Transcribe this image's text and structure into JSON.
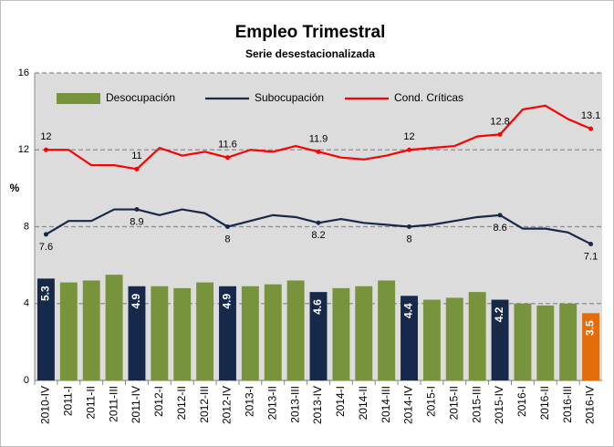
{
  "chart_data": {
    "type": "bar_line",
    "title": "Empleo Trimestral",
    "subtitle": "Serie desestacionalizada",
    "y_label": "%",
    "categories": [
      "2010-IV",
      "2011-I",
      "2011-II",
      "2011-III",
      "2011-IV",
      "2012-I",
      "2012-II",
      "2012-III",
      "2012-IV",
      "2013-I",
      "2013-II",
      "2013-III",
      "2013-IV",
      "2014-I",
      "2014-II",
      "2014-III",
      "2014-IV",
      "2015-I",
      "2015-II",
      "2015-III",
      "2015-IV",
      "2016-I",
      "2016-II",
      "2016-III",
      "2016-IV"
    ],
    "series": [
      {
        "name": "Desocupación",
        "type": "bar",
        "color": "#77933c",
        "colors": [
          "#17294a",
          "#77933c",
          "#77933c",
          "#77933c",
          "#17294a",
          "#77933c",
          "#77933c",
          "#77933c",
          "#17294a",
          "#77933c",
          "#77933c",
          "#77933c",
          "#17294a",
          "#77933c",
          "#77933c",
          "#77933c",
          "#17294a",
          "#77933c",
          "#77933c",
          "#77933c",
          "#17294a",
          "#77933c",
          "#77933c",
          "#77933c",
          "#e46c0a"
        ],
        "values": [
          5.3,
          5.1,
          5.2,
          5.5,
          4.9,
          4.9,
          4.8,
          5.1,
          4.9,
          4.9,
          5.0,
          5.2,
          4.6,
          4.8,
          4.9,
          5.2,
          4.4,
          4.2,
          4.3,
          4.6,
          4.2,
          4.0,
          3.9,
          4.0,
          3.5
        ]
      },
      {
        "name": "Subocupación",
        "type": "line",
        "color": "#17294a",
        "values": [
          7.6,
          8.3,
          8.3,
          8.9,
          8.9,
          8.6,
          8.9,
          8.7,
          8.0,
          8.3,
          8.6,
          8.5,
          8.2,
          8.4,
          8.2,
          8.1,
          8.0,
          8.1,
          8.3,
          8.5,
          8.6,
          7.9,
          7.9,
          7.7,
          7.1
        ]
      },
      {
        "name": "Cond. Críticas",
        "type": "line",
        "color": "#ff0000",
        "values": [
          12.0,
          12.0,
          11.2,
          11.2,
          11.0,
          12.1,
          11.7,
          11.9,
          11.6,
          12.0,
          11.9,
          12.2,
          11.9,
          11.6,
          11.5,
          11.7,
          12.0,
          12.1,
          12.2,
          12.7,
          12.8,
          14.1,
          14.3,
          13.6,
          13.1
        ]
      }
    ],
    "ylim": [
      0,
      16
    ],
    "yticks": [
      0,
      4,
      8,
      12,
      16
    ],
    "grid": true
  }
}
